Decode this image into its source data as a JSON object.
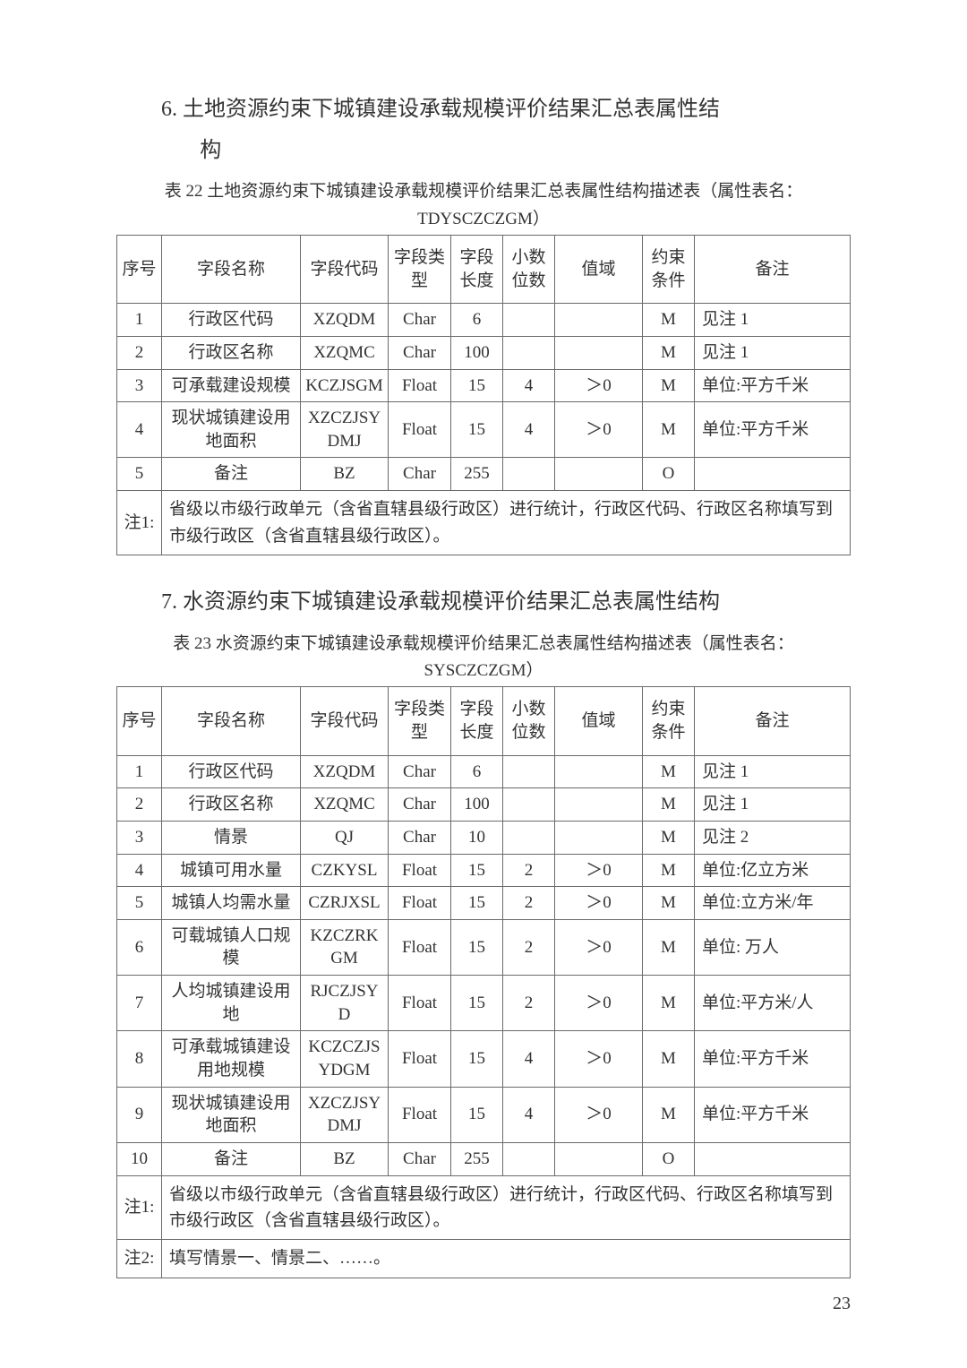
{
  "page_number": "23",
  "sections": [
    {
      "heading_num": "6.",
      "heading_text1": "土地资源约束下城镇建设承载规模评价结果汇总表属性结",
      "heading_text2": "构",
      "caption_line1": "表 22 土地资源约束下城镇建设承载规模评价结果汇总表属性结构描述表（属性表名：",
      "caption_line2": "TDYSCZCZGM）",
      "headers": [
        "序号",
        "字段名称",
        "字段代码",
        "字段类型",
        "字段长度",
        "小数位数",
        "值域",
        "约束条件",
        "备注"
      ],
      "rows": [
        [
          "1",
          "行政区代码",
          "XZQDM",
          "Char",
          "6",
          "",
          "",
          "M",
          "见注 1"
        ],
        [
          "2",
          "行政区名称",
          "XZQMC",
          "Char",
          "100",
          "",
          "",
          "M",
          "见注 1"
        ],
        [
          "3",
          "可承载建设规模",
          "KCZJSGM",
          "Float",
          "15",
          "4",
          "＞0",
          "M",
          "单位:平方千米"
        ],
        [
          "4",
          "现状城镇建设用地面积",
          "XZCZJSYDMJ",
          "Float",
          "15",
          "4",
          "＞0",
          "M",
          "单位:平方千米"
        ],
        [
          "5",
          "备注",
          "BZ",
          "Char",
          "255",
          "",
          "",
          "O",
          ""
        ]
      ],
      "notes": [
        {
          "label": "注1:",
          "body": "省级以市级行政单元（含省直辖县级行政区）进行统计，行政区代码、行政区名称填写到市级行政区（含省直辖县级行政区）。"
        }
      ]
    },
    {
      "heading_num": "7.",
      "heading_text1": "水资源约束下城镇建设承载规模评价结果汇总表属性结构",
      "heading_text2": "",
      "caption_line1": "表 23 水资源约束下城镇建设承载规模评价结果汇总表属性结构描述表（属性表名：",
      "caption_line2": "SYSCZCZGM）",
      "headers": [
        "序号",
        "字段名称",
        "字段代码",
        "字段类型",
        "字段长度",
        "小数位数",
        "值域",
        "约束条件",
        "备注"
      ],
      "rows": [
        [
          "1",
          "行政区代码",
          "XZQDM",
          "Char",
          "6",
          "",
          "",
          "M",
          "见注 1"
        ],
        [
          "2",
          "行政区名称",
          "XZQMC",
          "Char",
          "100",
          "",
          "",
          "M",
          "见注 1"
        ],
        [
          "3",
          "情景",
          "QJ",
          "Char",
          "10",
          "",
          "",
          "M",
          "见注 2"
        ],
        [
          "4",
          "城镇可用水量",
          "CZKYSL",
          "Float",
          "15",
          "2",
          "＞0",
          "M",
          "单位:亿立方米"
        ],
        [
          "5",
          "城镇人均需水量",
          "CZRJXSL",
          "Float",
          "15",
          "2",
          "＞0",
          "M",
          "单位:立方米/年"
        ],
        [
          "6",
          "可载城镇人口规模",
          "KZCZRKGM",
          "Float",
          "15",
          "2",
          "＞0",
          "M",
          "单位: 万人"
        ],
        [
          "7",
          "人均城镇建设用地",
          "RJCZJSYD",
          "Float",
          "15",
          "2",
          "＞0",
          "M",
          "单位:平方米/人"
        ],
        [
          "8",
          "可承载城镇建设用地规模",
          "KCZCZJSYDGM",
          "Float",
          "15",
          "4",
          "＞0",
          "M",
          "单位:平方千米"
        ],
        [
          "9",
          "现状城镇建设用地面积",
          "XZCZJSYDMJ",
          "Float",
          "15",
          "4",
          "＞0",
          "M",
          "单位:平方千米"
        ],
        [
          "10",
          "备注",
          "BZ",
          "Char",
          "255",
          "",
          "",
          "O",
          ""
        ]
      ],
      "notes": [
        {
          "label": "注1:",
          "body": "省级以市级行政单元（含省直辖县级行政区）进行统计，行政区代码、行政区名称填写到市级行政区（含省直辖县级行政区）。"
        },
        {
          "label": "注2:",
          "body": "填写情景一、情景二、……。"
        }
      ]
    }
  ]
}
